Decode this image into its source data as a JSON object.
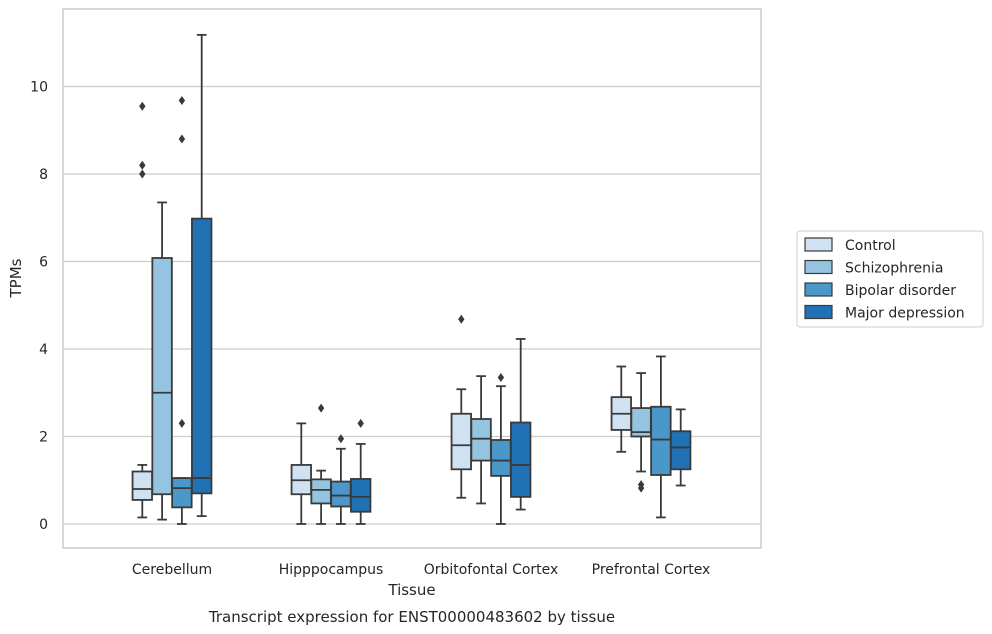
{
  "chart_data": {
    "type": "box",
    "caption": "Transcript expression for ENST00000483602 by tissue",
    "xlabel": "Tissue",
    "ylabel": "TPMs",
    "ylim": [
      -0.5,
      11.5
    ],
    "yticks": [
      0,
      2,
      4,
      6,
      8,
      10
    ],
    "grid": true,
    "legend_position": "right",
    "categories": [
      "Cerebellum",
      "Hipppocampus",
      "Orbitofontal Cortex",
      "Prefrontal Cortex"
    ],
    "series": [
      {
        "name": "Control",
        "color": "#d0e1f2",
        "boxes": [
          {
            "whislo": 0.15,
            "q1": 0.55,
            "med": 0.8,
            "q3": 1.2,
            "whishi": 1.35,
            "fliers": [
              8.0,
              8.2,
              9.55
            ]
          },
          {
            "whislo": 0.0,
            "q1": 0.68,
            "med": 1.0,
            "q3": 1.35,
            "whishi": 2.3,
            "fliers": []
          },
          {
            "whislo": 0.6,
            "q1": 1.25,
            "med": 1.8,
            "q3": 2.52,
            "whishi": 3.08,
            "fliers": [
              4.68
            ]
          },
          {
            "whislo": 1.65,
            "q1": 2.15,
            "med": 2.52,
            "q3": 2.9,
            "whishi": 3.6,
            "fliers": []
          }
        ]
      },
      {
        "name": "Schizophrenia",
        "color": "#94c4df",
        "boxes": [
          {
            "whislo": 0.1,
            "q1": 0.68,
            "med": 3.0,
            "q3": 6.08,
            "whishi": 7.35,
            "fliers": []
          },
          {
            "whislo": 0.0,
            "q1": 0.47,
            "med": 0.78,
            "q3": 1.02,
            "whishi": 1.22,
            "fliers": [
              2.65
            ]
          },
          {
            "whislo": 0.47,
            "q1": 1.45,
            "med": 1.95,
            "q3": 2.4,
            "whishi": 3.38,
            "fliers": []
          },
          {
            "whislo": 1.2,
            "q1": 2.0,
            "med": 2.1,
            "q3": 2.65,
            "whishi": 3.45,
            "fliers": [
              0.82,
              0.9
            ]
          }
        ]
      },
      {
        "name": "Bipolar disorder",
        "color": "#4a98c9",
        "boxes": [
          {
            "whislo": 0.0,
            "q1": 0.38,
            "med": 0.82,
            "q3": 1.05,
            "whishi": 1.05,
            "fliers": [
              2.3,
              8.8,
              9.68
            ]
          },
          {
            "whislo": 0.0,
            "q1": 0.4,
            "med": 0.65,
            "q3": 0.97,
            "whishi": 1.72,
            "fliers": [
              1.95
            ]
          },
          {
            "whislo": 0.0,
            "q1": 1.1,
            "med": 1.45,
            "q3": 1.92,
            "whishi": 3.15,
            "fliers": [
              3.35
            ]
          },
          {
            "whislo": 0.15,
            "q1": 1.12,
            "med": 1.93,
            "q3": 2.68,
            "whishi": 3.83,
            "fliers": []
          }
        ]
      },
      {
        "name": "Major depression",
        "color": "#2171b5",
        "boxes": [
          {
            "whislo": 0.18,
            "q1": 0.7,
            "med": 1.05,
            "q3": 6.98,
            "whishi": 11.18,
            "fliers": []
          },
          {
            "whislo": 0.0,
            "q1": 0.28,
            "med": 0.62,
            "q3": 1.03,
            "whishi": 1.83,
            "fliers": [
              2.3
            ]
          },
          {
            "whislo": 0.33,
            "q1": 0.62,
            "med": 1.35,
            "q3": 2.32,
            "whishi": 4.23,
            "fliers": []
          },
          {
            "whislo": 0.88,
            "q1": 1.25,
            "med": 1.75,
            "q3": 2.12,
            "whishi": 2.62,
            "fliers": []
          }
        ]
      }
    ]
  }
}
